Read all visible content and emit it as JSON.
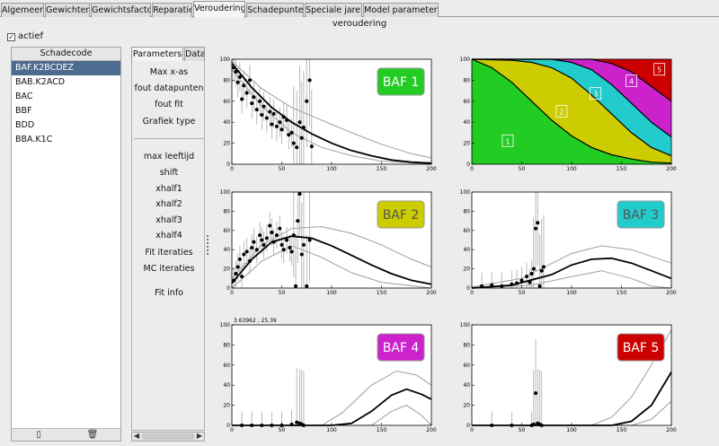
{
  "tabs": [
    {
      "label": "Algemeen",
      "active": false
    },
    {
      "label": "Gewichten",
      "active": false
    },
    {
      "label": "Gewichtsfactor",
      "active": false
    },
    {
      "label": "Reparatie",
      "active": false
    },
    {
      "label": "Veroudering",
      "active": true
    },
    {
      "label": "Schadepunten",
      "active": false
    },
    {
      "label": "Speciale jaren",
      "active": false
    },
    {
      "label": "Model parameters",
      "active": false
    }
  ],
  "section_title": "veroudering",
  "checkbox": {
    "label": "actief",
    "checked": true,
    "glyph": "✓"
  },
  "schadecode": {
    "header": "Schadecode",
    "items": [
      "BAF.K2BCDEZ",
      "BAB.K2ACD",
      "BAC",
      "BBF",
      "BDD",
      "BBA.K1C"
    ],
    "selected_index": 0,
    "footer_buttons": [
      {
        "icon": "new-file-icon",
        "glyph": "▯"
      },
      {
        "icon": "trash-icon",
        "glyph": "🗑"
      }
    ]
  },
  "param_tabs": [
    {
      "label": "Parameters",
      "active": true
    },
    {
      "label": "Data",
      "active": false
    }
  ],
  "params": {
    "group1": [
      "Max x-as",
      "fout datapunten",
      "fout fit",
      "Grafiek type"
    ],
    "group2": [
      "max leeftijd",
      "shift",
      "xhalf1",
      "xhalf2",
      "xhalf3",
      "xhalf4",
      "Fit iteraties",
      "MC iteraties"
    ],
    "group3": [
      "Fit info"
    ]
  },
  "colors": {
    "baf1": "#22cc22",
    "baf2": "#cccc00",
    "baf3": "#22cccc",
    "baf4": "#cc22cc",
    "baf5": "#cc0000",
    "selection": "#4c6b8f"
  },
  "chart_data": [
    {
      "type": "scatter",
      "badge": "BAF 1",
      "badge_color": "#22cc22",
      "badge_text_color": "#ffffff",
      "xlim": [
        0,
        200
      ],
      "ylim": [
        0,
        100
      ],
      "x_ticks": [
        0,
        50,
        100,
        150,
        200
      ],
      "y_ticks": [
        0,
        20,
        40,
        60,
        80,
        100
      ],
      "points": [
        [
          2,
          92
        ],
        [
          4,
          88
        ],
        [
          6,
          78
        ],
        [
          8,
          83
        ],
        [
          10,
          62
        ],
        [
          12,
          75
        ],
        [
          15,
          68
        ],
        [
          18,
          80
        ],
        [
          20,
          58
        ],
        [
          22,
          64
        ],
        [
          25,
          52
        ],
        [
          28,
          60
        ],
        [
          30,
          47
        ],
        [
          32,
          55
        ],
        [
          35,
          44
        ],
        [
          38,
          50
        ],
        [
          40,
          38
        ],
        [
          42,
          48
        ],
        [
          45,
          36
        ],
        [
          48,
          40
        ],
        [
          50,
          33
        ],
        [
          52,
          45
        ],
        [
          55,
          42
        ],
        [
          57,
          28
        ],
        [
          60,
          30
        ],
        [
          62,
          20
        ],
        [
          65,
          16
        ],
        [
          68,
          40
        ],
        [
          70,
          25
        ],
        [
          72,
          35
        ],
        [
          75,
          60
        ],
        [
          78,
          80
        ],
        [
          80,
          17
        ]
      ],
      "fit": [
        [
          0,
          96
        ],
        [
          20,
          73
        ],
        [
          40,
          54
        ],
        [
          60,
          40
        ],
        [
          80,
          29
        ],
        [
          100,
          20
        ],
        [
          120,
          13
        ],
        [
          140,
          8
        ],
        [
          160,
          4
        ],
        [
          180,
          2
        ],
        [
          200,
          1
        ]
      ],
      "band_upper": [
        [
          0,
          98
        ],
        [
          30,
          72
        ],
        [
          60,
          54
        ],
        [
          90,
          42
        ],
        [
          120,
          30
        ],
        [
          150,
          19
        ],
        [
          180,
          10
        ],
        [
          200,
          6
        ]
      ],
      "band_lower": [
        [
          0,
          90
        ],
        [
          30,
          55
        ],
        [
          60,
          30
        ],
        [
          90,
          16
        ],
        [
          120,
          8
        ],
        [
          150,
          3
        ],
        [
          200,
          0
        ]
      ]
    },
    {
      "type": "area",
      "badge": "",
      "xlim": [
        0,
        200
      ],
      "ylim": [
        0,
        100
      ],
      "x_ticks": [
        0,
        50,
        100,
        150,
        200
      ],
      "y_ticks": [
        0,
        20,
        40,
        60,
        80,
        100
      ],
      "region_labels": [
        "1",
        "2",
        "3",
        "4",
        "5"
      ],
      "region_colors": [
        "#22cc22",
        "#cccc00",
        "#22cccc",
        "#cc22cc",
        "#cc0000"
      ],
      "boundaries": [
        [
          [
            0,
            100
          ],
          [
            20,
            92
          ],
          [
            40,
            78
          ],
          [
            60,
            60
          ],
          [
            80,
            42
          ],
          [
            100,
            27
          ],
          [
            120,
            16
          ],
          [
            140,
            9
          ],
          [
            160,
            5
          ],
          [
            180,
            2
          ],
          [
            200,
            1
          ]
        ],
        [
          [
            0,
            100
          ],
          [
            40,
            99
          ],
          [
            60,
            97
          ],
          [
            80,
            92
          ],
          [
            100,
            82
          ],
          [
            120,
            66
          ],
          [
            140,
            48
          ],
          [
            160,
            30
          ],
          [
            180,
            16
          ],
          [
            200,
            8
          ]
        ],
        [
          [
            0,
            100
          ],
          [
            80,
            100
          ],
          [
            100,
            97
          ],
          [
            120,
            90
          ],
          [
            140,
            76
          ],
          [
            160,
            58
          ],
          [
            180,
            40
          ],
          [
            200,
            26
          ]
        ],
        [
          [
            0,
            100
          ],
          [
            120,
            100
          ],
          [
            140,
            96
          ],
          [
            160,
            88
          ],
          [
            180,
            74
          ],
          [
            200,
            60
          ]
        ]
      ]
    },
    {
      "type": "scatter",
      "badge": "BAF 2",
      "badge_color": "#cccc00",
      "badge_text_color": "#555555",
      "xlim": [
        0,
        200
      ],
      "ylim": [
        0,
        100
      ],
      "x_ticks": [
        0,
        50,
        100,
        150,
        200
      ],
      "y_ticks": [
        0,
        20,
        40,
        60,
        80,
        100
      ],
      "points": [
        [
          2,
          8
        ],
        [
          4,
          15
        ],
        [
          6,
          22
        ],
        [
          8,
          30
        ],
        [
          10,
          12
        ],
        [
          12,
          35
        ],
        [
          15,
          38
        ],
        [
          18,
          28
        ],
        [
          20,
          42
        ],
        [
          22,
          48
        ],
        [
          25,
          40
        ],
        [
          28,
          55
        ],
        [
          30,
          50
        ],
        [
          32,
          45
        ],
        [
          35,
          52
        ],
        [
          38,
          65
        ],
        [
          40,
          58
        ],
        [
          42,
          48
        ],
        [
          45,
          55
        ],
        [
          48,
          62
        ],
        [
          50,
          45
        ],
        [
          52,
          40
        ],
        [
          55,
          50
        ],
        [
          58,
          42
        ],
        [
          60,
          38
        ],
        [
          62,
          55
        ],
        [
          64,
          2
        ],
        [
          66,
          70
        ],
        [
          68,
          98
        ],
        [
          70,
          35
        ],
        [
          72,
          45
        ],
        [
          75,
          2
        ],
        [
          78,
          50
        ]
      ],
      "fit": [
        [
          0,
          5
        ],
        [
          20,
          30
        ],
        [
          40,
          48
        ],
        [
          60,
          54
        ],
        [
          80,
          52
        ],
        [
          100,
          44
        ],
        [
          120,
          34
        ],
        [
          140,
          24
        ],
        [
          160,
          15
        ],
        [
          180,
          8
        ],
        [
          200,
          4
        ]
      ],
      "band_upper": [
        [
          0,
          10
        ],
        [
          30,
          45
        ],
        [
          60,
          62
        ],
        [
          90,
          64
        ],
        [
          120,
          57
        ],
        [
          150,
          45
        ],
        [
          180,
          30
        ],
        [
          200,
          22
        ]
      ],
      "band_lower": [
        [
          0,
          0
        ],
        [
          30,
          28
        ],
        [
          60,
          44
        ],
        [
          90,
          32
        ],
        [
          120,
          16
        ],
        [
          150,
          6
        ],
        [
          200,
          0
        ]
      ]
    },
    {
      "type": "scatter",
      "badge": "BAF 3",
      "badge_color": "#22cccc",
      "badge_text_color": "#555555",
      "xlim": [
        0,
        200
      ],
      "ylim": [
        0,
        100
      ],
      "x_ticks": [
        0,
        50,
        100,
        150,
        200
      ],
      "y_ticks": [
        0,
        20,
        40,
        60,
        80,
        100
      ],
      "points": [
        [
          10,
          2
        ],
        [
          20,
          3
        ],
        [
          30,
          2
        ],
        [
          40,
          4
        ],
        [
          45,
          5
        ],
        [
          50,
          8
        ],
        [
          55,
          12
        ],
        [
          58,
          6
        ],
        [
          60,
          15
        ],
        [
          62,
          20
        ],
        [
          64,
          62
        ],
        [
          66,
          68
        ],
        [
          68,
          2
        ],
        [
          70,
          18
        ],
        [
          72,
          22
        ]
      ],
      "fit": [
        [
          0,
          0
        ],
        [
          40,
          3
        ],
        [
          80,
          14
        ],
        [
          100,
          24
        ],
        [
          120,
          30
        ],
        [
          140,
          31
        ],
        [
          160,
          26
        ],
        [
          180,
          18
        ],
        [
          200,
          10
        ]
      ],
      "band_upper": [
        [
          0,
          1
        ],
        [
          50,
          10
        ],
        [
          100,
          36
        ],
        [
          130,
          44
        ],
        [
          160,
          40
        ],
        [
          200,
          26
        ]
      ],
      "band_lower": [
        [
          0,
          0
        ],
        [
          60,
          3
        ],
        [
          100,
          12
        ],
        [
          130,
          18
        ],
        [
          160,
          10
        ],
        [
          180,
          2
        ],
        [
          200,
          0
        ]
      ]
    },
    {
      "type": "scatter",
      "badge": "BAF 4",
      "badge_color": "#cc22cc",
      "badge_text_color": "#ffffff",
      "corner_label": "3.63962 , 25.39",
      "xlim": [
        0,
        200
      ],
      "ylim": [
        0,
        100
      ],
      "x_ticks": [
        0,
        50,
        100,
        150,
        200
      ],
      "y_ticks": [
        0,
        20,
        40,
        60,
        80,
        100
      ],
      "points": [
        [
          10,
          0
        ],
        [
          20,
          0
        ],
        [
          30,
          0
        ],
        [
          40,
          0
        ],
        [
          50,
          0
        ],
        [
          60,
          1
        ],
        [
          65,
          3
        ],
        [
          68,
          2
        ],
        [
          70,
          1
        ],
        [
          72,
          0
        ]
      ],
      "fit": [
        [
          0,
          0
        ],
        [
          100,
          0
        ],
        [
          120,
          2
        ],
        [
          140,
          14
        ],
        [
          160,
          30
        ],
        [
          175,
          36
        ],
        [
          190,
          31
        ],
        [
          200,
          26
        ]
      ],
      "band_upper": [
        [
          0,
          0
        ],
        [
          90,
          0
        ],
        [
          110,
          12
        ],
        [
          140,
          40
        ],
        [
          165,
          54
        ],
        [
          185,
          50
        ],
        [
          200,
          40
        ]
      ],
      "band_lower": [
        [
          0,
          0
        ],
        [
          140,
          0
        ],
        [
          160,
          14
        ],
        [
          175,
          20
        ],
        [
          190,
          10
        ],
        [
          200,
          0
        ]
      ]
    },
    {
      "type": "scatter",
      "badge": "BAF 5",
      "badge_color": "#cc0000",
      "badge_text_color": "#ffffff",
      "xlim": [
        0,
        200
      ],
      "ylim": [
        0,
        100
      ],
      "x_ticks": [
        0,
        50,
        100,
        150,
        200
      ],
      "y_ticks": [
        0,
        20,
        40,
        60,
        80,
        100
      ],
      "points": [
        [
          20,
          0
        ],
        [
          40,
          0
        ],
        [
          60,
          0
        ],
        [
          62,
          1
        ],
        [
          64,
          32
        ],
        [
          66,
          2
        ],
        [
          68,
          1
        ],
        [
          70,
          0
        ]
      ],
      "fit": [
        [
          0,
          0
        ],
        [
          140,
          0
        ],
        [
          160,
          4
        ],
        [
          180,
          20
        ],
        [
          200,
          53
        ]
      ],
      "band_upper": [
        [
          0,
          0
        ],
        [
          120,
          0
        ],
        [
          140,
          8
        ],
        [
          160,
          28
        ],
        [
          180,
          60
        ],
        [
          200,
          95
        ]
      ],
      "band_lower": [
        [
          0,
          0
        ],
        [
          160,
          0
        ],
        [
          180,
          6
        ],
        [
          200,
          24
        ]
      ]
    }
  ]
}
